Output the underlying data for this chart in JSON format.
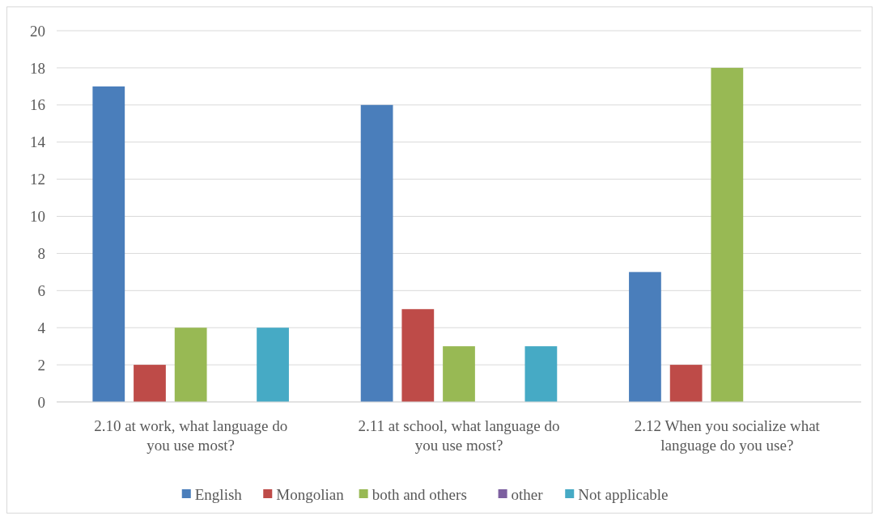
{
  "chart_data": {
    "type": "bar",
    "categories": [
      "2.10 at work, what language do you use most?",
      "2.11 at school, what language do you use most?",
      "2.12 When you socialize what language do you use?"
    ],
    "series": [
      {
        "name": "English",
        "color": "#4a7ebb",
        "values": [
          17,
          16,
          7
        ]
      },
      {
        "name": "Mongolian",
        "color": "#be4b48",
        "values": [
          2,
          5,
          2
        ]
      },
      {
        "name": "both and others",
        "color": "#98b954",
        "values": [
          4,
          3,
          18
        ]
      },
      {
        "name": "other",
        "color": "#7d60a0",
        "values": [
          0,
          0,
          0
        ]
      },
      {
        "name": "Not applicable",
        "color": "#46aac5",
        "values": [
          4,
          3,
          0
        ]
      }
    ],
    "ylim": [
      0,
      20
    ],
    "yticks": [
      0,
      2,
      4,
      6,
      8,
      10,
      12,
      14,
      16,
      18,
      20
    ],
    "grid": "y",
    "legend": "bottom"
  }
}
